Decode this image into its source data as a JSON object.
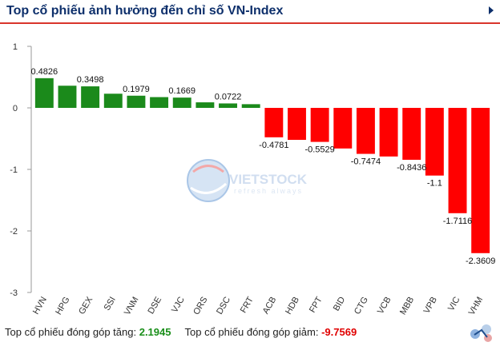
{
  "header": {
    "title": "Top cổ phiếu ảnh hưởng đến chỉ số VN-Index"
  },
  "watermark": {
    "brand": "VIETSTOCK",
    "tagline": "refresh always"
  },
  "footer": {
    "up_label": "Top cổ phiếu đóng góp tăng:",
    "up_value": "2.1945",
    "down_label": "Top cổ phiếu đóng góp giảm:",
    "down_value": "-9.7569"
  },
  "colors": {
    "positive": "#1b8a1b",
    "negative": "#ff0000",
    "title": "#0d2f6b",
    "accent": "#d9342b"
  },
  "chart_data": {
    "type": "bar",
    "title": "",
    "xlabel": "",
    "ylabel": "",
    "ylim": [
      -3,
      1
    ],
    "yticks": [
      1,
      0,
      -1,
      -2,
      -3
    ],
    "grid": false,
    "categories": [
      "HVN",
      "HPG",
      "GEX",
      "SSI",
      "VNM",
      "DSE",
      "VJC",
      "ORS",
      "DSC",
      "FRT",
      "ACB",
      "HDB",
      "FPT",
      "BID",
      "CTG",
      "VCB",
      "MBB",
      "VPB",
      "VIC",
      "VHM"
    ],
    "values": [
      0.4826,
      0.36,
      0.3498,
      0.23,
      0.1979,
      0.175,
      0.1669,
      0.09,
      0.0722,
      0.06,
      -0.4781,
      -0.52,
      -0.5529,
      -0.66,
      -0.7474,
      -0.79,
      -0.8436,
      -1.1,
      -1.7116,
      -2.3609
    ],
    "data_labels": [
      "0.4826",
      "",
      "0.3498",
      "",
      "0.1979",
      "",
      "0.1669",
      "",
      "0.0722",
      "",
      "-0.4781",
      "",
      "-0.5529",
      "",
      "-0.7474",
      "",
      "-0.8436",
      "-1.1",
      "-1.7116",
      "-2.3609"
    ]
  }
}
